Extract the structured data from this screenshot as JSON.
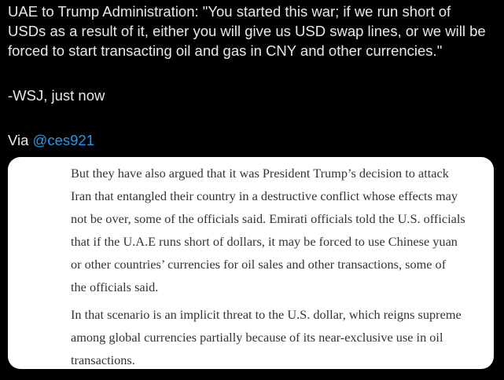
{
  "tweet": {
    "quote_lines": [
      "UAE to Trump Administration: \"You started this war; if we run short of",
      "USDs as a result of it, either you will give us USD swap lines, or we will be",
      "forced to start transacting oil and gas in CNY and other currencies.\""
    ],
    "source": "-WSJ, just now",
    "via_label": "Via",
    "mention": "@ces921"
  },
  "article_image": {
    "paragraphs": [
      {
        "lines": [
          "But they have also argued that it was President Trump’s decision to attack",
          "Iran that entangled their country in a destructive conflict whose effects may",
          "not be over, some of the officials said. Emirati officials told the U.S. officials",
          "that if the U.A.E runs short of dollars, it may be forced to use Chinese yuan",
          "or other countries’ currencies for oil sales and other transactions, some of",
          "the officials said."
        ]
      },
      {
        "lines": [
          "In that scenario is an implicit threat to the U.S. dollar, which reigns supreme",
          "among global currencies partially because of its near-exclusive use in oil",
          "transactions."
        ]
      }
    ]
  },
  "colors": {
    "background": "#000000",
    "text": "#e7e9ea",
    "link": "#1d9bf0",
    "card": "#ffffff"
  }
}
